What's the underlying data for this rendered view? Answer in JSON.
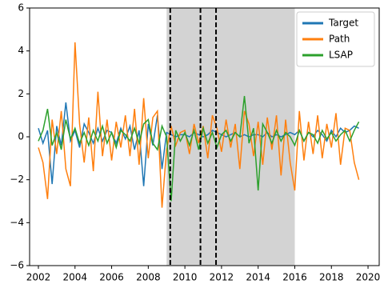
{
  "chart_data": {
    "type": "line",
    "x": [
      2002,
      2002.25,
      2002.5,
      2002.75,
      2003,
      2003.25,
      2003.5,
      2003.75,
      2004,
      2004.25,
      2004.5,
      2004.75,
      2005,
      2005.25,
      2005.5,
      2005.75,
      2006,
      2006.25,
      2006.5,
      2006.75,
      2007,
      2007.25,
      2007.5,
      2007.75,
      2008,
      2008.25,
      2008.5,
      2008.75,
      2009,
      2009.25,
      2009.5,
      2009.75,
      2010,
      2010.25,
      2010.5,
      2010.75,
      2011,
      2011.25,
      2011.5,
      2011.75,
      2012,
      2012.25,
      2012.5,
      2012.75,
      2013,
      2013.25,
      2013.5,
      2013.75,
      2014,
      2014.25,
      2014.5,
      2014.75,
      2015,
      2015.25,
      2015.5,
      2015.75,
      2016,
      2016.25,
      2016.5,
      2016.75,
      2017,
      2017.25,
      2017.5,
      2017.75,
      2018,
      2018.25,
      2018.5,
      2018.75,
      2019,
      2019.25,
      2019.5
    ],
    "series": [
      {
        "name": "Target",
        "color": "#1f77b4",
        "values": [
          0.4,
          -0.3,
          0.3,
          -2.2,
          0.5,
          -0.4,
          1.6,
          -0.2,
          0.3,
          -0.5,
          0.6,
          0.2,
          -0.3,
          0.4,
          -0.2,
          0.3,
          0.2,
          -0.3,
          0.4,
          -0.1,
          0.5,
          -0.6,
          0.3,
          -2.3,
          0.6,
          -0.4,
          1.0,
          -1.5,
          0.2,
          0.1,
          0.0,
          0.1,
          0.1,
          0.0,
          0.2,
          0.1,
          0.0,
          0.1,
          0.3,
          0.2,
          0.1,
          0.0,
          0.1,
          0.2,
          0.0,
          0.1,
          0.0,
          0.1,
          0.1,
          0.0,
          0.2,
          0.0,
          0.1,
          0.0,
          0.1,
          0.2,
          0.1,
          0.3,
          -0.2,
          0.2,
          0.0,
          0.3,
          0.1,
          -0.2,
          0.3,
          0.0,
          0.4,
          0.2,
          0.3,
          0.5,
          0.4
        ]
      },
      {
        "name": "Path",
        "color": "#ff7f0e",
        "values": [
          -0.5,
          -1.2,
          -2.9,
          0.8,
          -0.8,
          1.2,
          -1.5,
          -2.3,
          4.4,
          0.6,
          -1.2,
          0.9,
          -1.6,
          2.1,
          -0.9,
          0.8,
          -1.1,
          0.7,
          -0.5,
          1.0,
          -0.9,
          1.3,
          -1.3,
          1.8,
          -1.0,
          0.9,
          1.2,
          -3.3,
          -0.6,
          0.5,
          -0.4,
          0.2,
          0.3,
          -0.8,
          0.6,
          -0.3,
          0.5,
          -1.0,
          1.0,
          0.4,
          -0.7,
          0.8,
          -0.5,
          0.6,
          -1.5,
          1.2,
          0.6,
          -0.9,
          0.7,
          -1.3,
          0.9,
          -0.6,
          1.0,
          -1.8,
          0.8,
          -1.2,
          -2.5,
          1.2,
          -1.1,
          0.7,
          -0.8,
          1.0,
          -1.0,
          0.6,
          -0.5,
          1.1,
          -1.3,
          0.4,
          0.3,
          -1.2,
          -2.0
        ]
      },
      {
        "name": "LSAP",
        "color": "#2ca02c",
        "values": [
          -0.2,
          0.3,
          1.3,
          -0.4,
          0.2,
          -0.6,
          0.8,
          -0.1,
          0.4,
          -0.3,
          0.2,
          -0.4,
          0.3,
          -0.2,
          0.5,
          -0.3,
          0.2,
          -0.5,
          0.3,
          0.1,
          -0.2,
          0.4,
          -0.3,
          0.6,
          0.8,
          -0.3,
          -0.6,
          0.5,
          0.0,
          -3.0,
          0.3,
          -0.2,
          0.2,
          -0.4,
          0.3,
          -0.6,
          0.4,
          -0.3,
          0.2,
          -0.5,
          0.1,
          0.3,
          -0.2,
          0.2,
          0.0,
          1.9,
          -0.3,
          0.4,
          -2.5,
          0.6,
          0.2,
          -0.3,
          0.3,
          -0.2,
          0.2,
          0.0,
          -0.4,
          0.3,
          -0.2,
          0.2,
          0.1,
          -0.3,
          0.3,
          -0.1,
          0.2,
          -0.2,
          0.1,
          0.3,
          -0.2,
          0.3,
          0.7
        ]
      }
    ],
    "xlim": [
      2001.52,
      2020.61
    ],
    "ylim": [
      -6,
      6
    ],
    "xticks": [
      2002,
      2004,
      2006,
      2008,
      2010,
      2012,
      2014,
      2016,
      2018,
      2020
    ],
    "yticks": [
      {
        "value": -6,
        "label": "−6"
      },
      {
        "value": -4,
        "label": "−4"
      },
      {
        "value": -2,
        "label": "−2"
      },
      0,
      2,
      4,
      6
    ],
    "shaded_span": [
      2009,
      2016
    ],
    "shade_color": "#d3d3d3",
    "vlines": [
      2009.2,
      2010.85,
      2011.7
    ],
    "legend": "upper right"
  }
}
